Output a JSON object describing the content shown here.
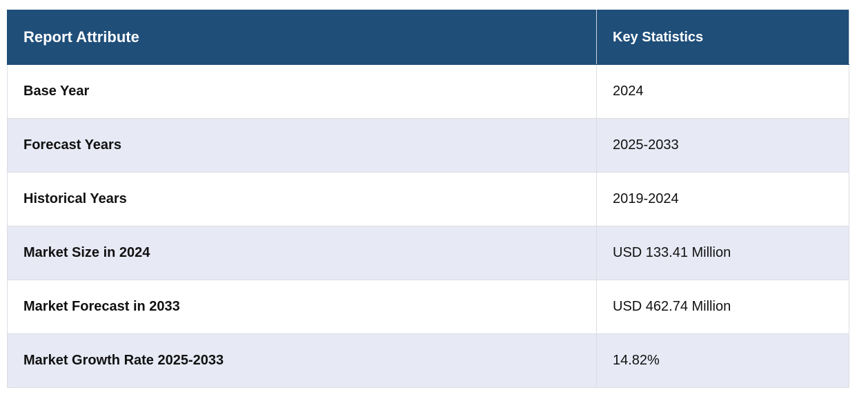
{
  "table": {
    "header": [
      "Report Attribute",
      "Key Statistics"
    ],
    "rows": [
      [
        "Base Year",
        "2024"
      ],
      [
        "Forecast Years",
        "2025-2033"
      ],
      [
        "Historical Years",
        "2019-2024"
      ],
      [
        "Market Size in 2024",
        "USD 133.41 Million"
      ],
      [
        "Market Forecast in 2033",
        "USD 462.74 Million"
      ],
      [
        "Market Growth Rate 2025-2033",
        "14.82%"
      ]
    ]
  }
}
